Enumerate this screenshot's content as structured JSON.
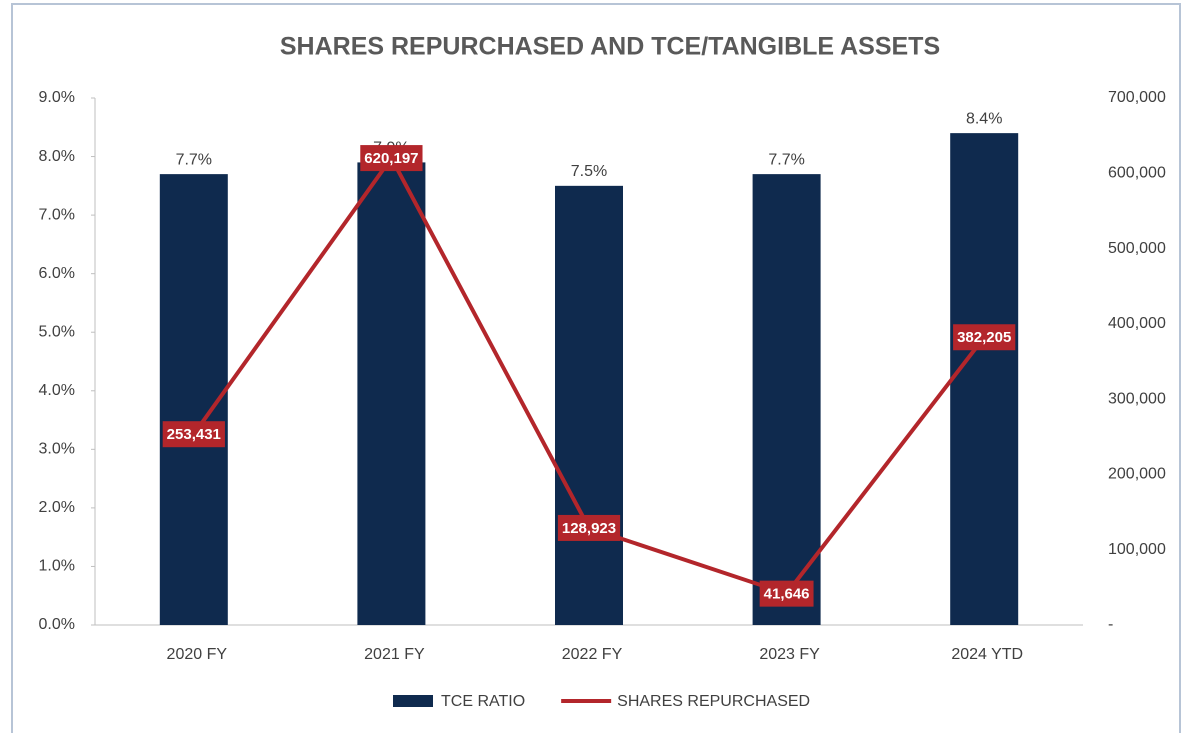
{
  "chart_data": {
    "type": "bar",
    "title": "SHARES REPURCHASED AND TCE/TANGIBLE ASSETS",
    "categories": [
      "2020 FY",
      "2021 FY",
      "2022 FY",
      "2023 FY",
      "2024 YTD"
    ],
    "series": [
      {
        "name": "TCE RATIO",
        "type": "bar",
        "color": "#0f2a4e",
        "values": [
          7.7,
          7.9,
          7.5,
          7.7,
          8.4
        ],
        "value_labels": [
          "7.7%",
          "7.9%",
          "7.5%",
          "7.7%",
          "8.4%"
        ]
      },
      {
        "name": "SHARES REPURCHASED",
        "type": "line",
        "axis": "y2",
        "color": "#b3262b",
        "values": [
          253431,
          620197,
          128923,
          41646,
          382205
        ],
        "value_labels": [
          "253,431",
          "620,197",
          "128,923",
          "41,646",
          "382,205"
        ]
      }
    ],
    "ylim": [
      0,
      9
    ],
    "yticks": [
      {
        "value": 0,
        "label": "0.0%"
      },
      {
        "value": 1,
        "label": "1.0%"
      },
      {
        "value": 2,
        "label": "2.0%"
      },
      {
        "value": 3,
        "label": "3.0%"
      },
      {
        "value": 4,
        "label": "4.0%"
      },
      {
        "value": 5,
        "label": "5.0%"
      },
      {
        "value": 6,
        "label": "6.0%"
      },
      {
        "value": 7,
        "label": "7.0%"
      },
      {
        "value": 8,
        "label": "8.0%"
      },
      {
        "value": 9,
        "label": "9.0%"
      }
    ],
    "y2lim": [
      0,
      700000
    ],
    "y2ticks": [
      {
        "value": 0,
        "label": "-"
      },
      {
        "value": 100000,
        "label": "100,000"
      },
      {
        "value": 200000,
        "label": "200,000"
      },
      {
        "value": 300000,
        "label": "300,000"
      },
      {
        "value": 400000,
        "label": "400,000"
      },
      {
        "value": 500000,
        "label": "500,000"
      },
      {
        "value": 600000,
        "label": "600,000"
      },
      {
        "value": 700000,
        "label": "700,000"
      }
    ],
    "grid": false,
    "legend": "bottom"
  }
}
